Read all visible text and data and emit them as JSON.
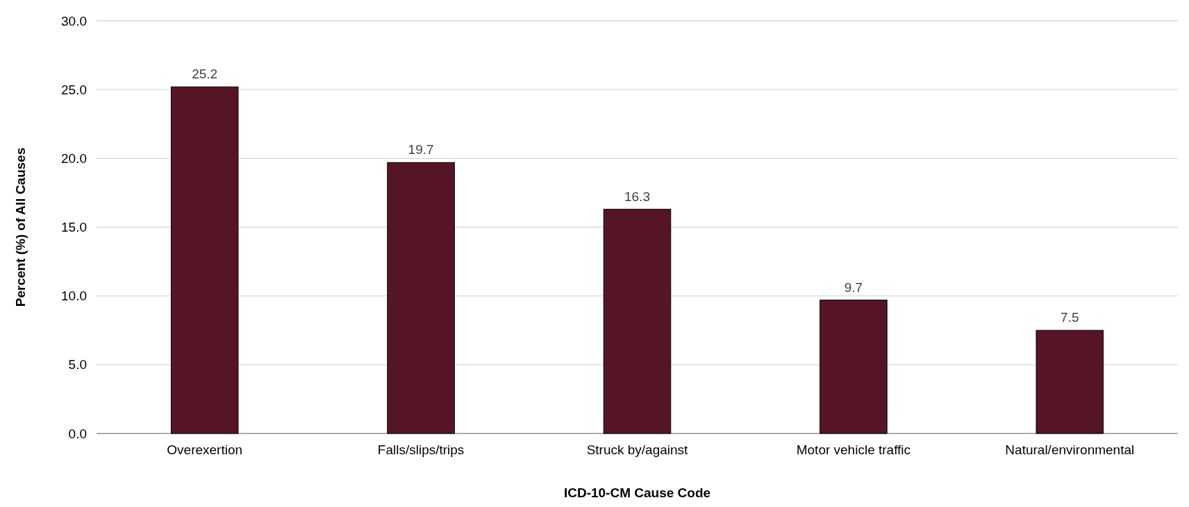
{
  "chart_data": {
    "type": "bar",
    "xlabel": "ICD-10-CM Cause Code",
    "ylabel": "Percent (%)  of All Causes",
    "categories": [
      "Overexertion",
      "Falls/slips/trips",
      "Struck by/against",
      "Motor vehicle traffic",
      "Natural/environmental"
    ],
    "values": [
      25.2,
      19.7,
      16.3,
      9.7,
      7.5
    ],
    "color": "#561525",
    "ylim": [
      0,
      30
    ],
    "yticks": [
      {
        "value": 0,
        "label": "0.0"
      },
      {
        "value": 5,
        "label": "5.0"
      },
      {
        "value": 10,
        "label": "10.0"
      },
      {
        "value": 15,
        "label": "15.0"
      },
      {
        "value": 20,
        "label": "20.0"
      },
      {
        "value": 25,
        "label": "25.0"
      },
      {
        "value": 30,
        "label": "30.0"
      }
    ],
    "grid": "y",
    "data_labels": true
  }
}
